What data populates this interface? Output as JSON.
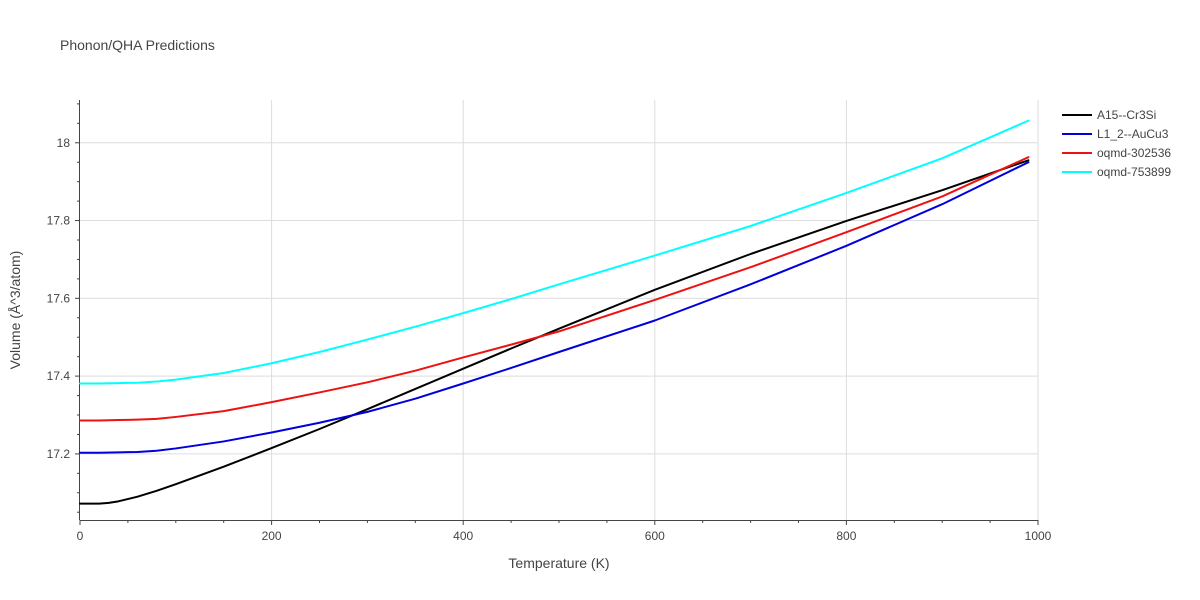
{
  "chart_data": {
    "type": "line",
    "title": "Phonon/QHA Predictions",
    "xlabel": "Temperature (K)",
    "ylabel": "Volume (Å^3/atom)",
    "xlim": [
      0,
      1000
    ],
    "ylim": [
      17.03,
      18.11
    ],
    "xticks": [
      0,
      200,
      400,
      600,
      800,
      1000
    ],
    "xtick_labels": [
      "0",
      "200",
      "400",
      "600",
      "800",
      "1000"
    ],
    "yticks": [
      17.2,
      17.4,
      17.6,
      17.8,
      18.0
    ],
    "ytick_labels": [
      "17.2",
      "17.4",
      "17.6",
      "17.8",
      "18"
    ],
    "grid": true,
    "legend_position": "top-right",
    "series": [
      {
        "name": "A15--Cr3Si",
        "color": "#000000",
        "x": [
          0,
          20,
          30,
          40,
          60,
          80,
          100,
          120,
          150,
          200,
          250,
          300,
          350,
          400,
          450,
          500,
          600,
          700,
          800,
          900,
          990
        ],
        "y": [
          17.072,
          17.072,
          17.074,
          17.078,
          17.09,
          17.105,
          17.122,
          17.14,
          17.167,
          17.215,
          17.264,
          17.315,
          17.367,
          17.419,
          17.471,
          17.522,
          17.622,
          17.714,
          17.799,
          17.878,
          17.955
        ]
      },
      {
        "name": "L1_2--AuCu3",
        "color": "#0000dd",
        "x": [
          0,
          20,
          40,
          60,
          80,
          100,
          150,
          200,
          250,
          300,
          350,
          400,
          450,
          500,
          600,
          700,
          800,
          900,
          990
        ],
        "y": [
          17.203,
          17.203,
          17.204,
          17.205,
          17.208,
          17.214,
          17.232,
          17.255,
          17.28,
          17.308,
          17.342,
          17.381,
          17.421,
          17.462,
          17.543,
          17.636,
          17.735,
          17.842,
          17.95
        ]
      },
      {
        "name": "oqmd-302536",
        "color": "#ee1111",
        "x": [
          0,
          20,
          40,
          60,
          80,
          100,
          150,
          200,
          250,
          300,
          350,
          400,
          450,
          500,
          600,
          700,
          800,
          900,
          990
        ],
        "y": [
          17.286,
          17.286,
          17.287,
          17.288,
          17.29,
          17.295,
          17.31,
          17.333,
          17.358,
          17.384,
          17.414,
          17.448,
          17.481,
          17.515,
          17.596,
          17.68,
          17.77,
          17.862,
          17.963
        ]
      },
      {
        "name": "oqmd-753899",
        "color": "#00ffff",
        "x": [
          0,
          20,
          40,
          60,
          80,
          100,
          150,
          200,
          250,
          300,
          350,
          400,
          450,
          500,
          600,
          700,
          800,
          900,
          990
        ],
        "y": [
          17.381,
          17.381,
          17.382,
          17.383,
          17.386,
          17.391,
          17.408,
          17.433,
          17.462,
          17.494,
          17.527,
          17.562,
          17.598,
          17.636,
          17.71,
          17.786,
          17.871,
          17.96,
          18.057
        ]
      }
    ]
  }
}
